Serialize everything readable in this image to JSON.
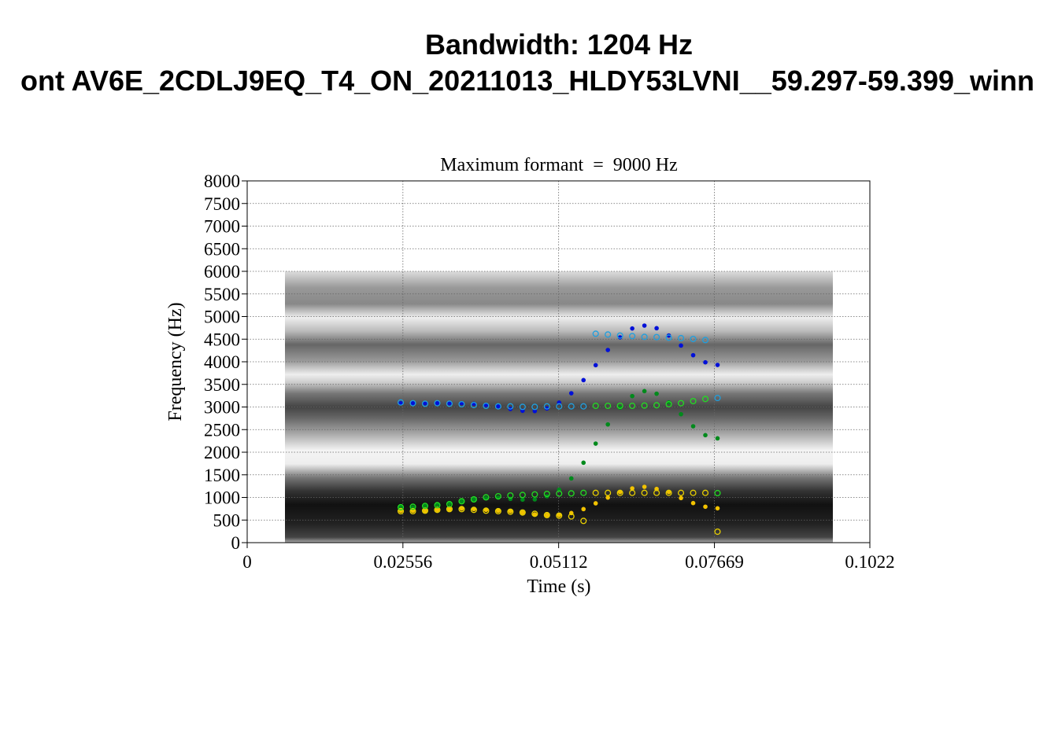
{
  "header": {
    "title_line1": "Bandwidth: 1204 Hz",
    "title_line2": "ont AV6E_2CDLJ9EQ_T4_ON_20211013_HLDY53LVNI__59.297-59.399_winn"
  },
  "chart_data": {
    "type": "scatter",
    "title": "Maximum formant  =  9000 Hz",
    "xlabel": "Time (s)",
    "ylabel": "Frequency (Hz)",
    "xlim": [
      0,
      0.1022
    ],
    "ylim": [
      0,
      8000
    ],
    "grid": true,
    "x_ticks": [
      "0",
      "0.02556",
      "0.05112",
      "0.07669",
      "0.1022"
    ],
    "x_tick_values": [
      0,
      0.02556,
      0.05112,
      0.07669,
      0.1022
    ],
    "y_ticks": [
      "0",
      "500",
      "1000",
      "1500",
      "2000",
      "2500",
      "3000",
      "3500",
      "4000",
      "4500",
      "5000",
      "5500",
      "6000",
      "6500",
      "7000",
      "7500",
      "8000"
    ],
    "background": "spectrogram (grayscale), 0.0062-0.0961 s, 0-6000 Hz",
    "x": [
      0.0252,
      0.0272,
      0.0292,
      0.0312,
      0.0332,
      0.0352,
      0.0372,
      0.0392,
      0.0412,
      0.0432,
      0.0452,
      0.0472,
      0.0492,
      0.0512,
      0.0532,
      0.0552,
      0.0572,
      0.0592,
      0.0612,
      0.0632,
      0.0652,
      0.0672,
      0.0692,
      0.0712,
      0.0732,
      0.0752,
      0.0772
    ],
    "series": [
      {
        "name": "F1 (filled)",
        "marker": "filled",
        "color": "#f2c200",
        "values": [
          707,
          707,
          707,
          725,
          742,
          754,
          742,
          725,
          707,
          696,
          667,
          626,
          609,
          609,
          655,
          742,
          870,
          997,
          1119,
          1200,
          1235,
          1188,
          1119,
          986,
          875,
          795,
          760
        ]
      },
      {
        "name": "F2 (filled)",
        "marker": "filled",
        "color": "#008a1c",
        "values": [
          783,
          783,
          812,
          841,
          870,
          916,
          957,
          986,
          997,
          968,
          951,
          957,
          1026,
          1171,
          1420,
          1768,
          2191,
          2615,
          2986,
          3241,
          3351,
          3293,
          3101,
          2841,
          2574,
          2377,
          2307
        ]
      },
      {
        "name": "F3 (filled)",
        "marker": "filled",
        "color": "#0010d8",
        "values": [
          3084,
          3084,
          3084,
          3084,
          3084,
          3084,
          3072,
          3043,
          3014,
          2957,
          2916,
          2910,
          2968,
          3096,
          3304,
          3594,
          3925,
          4261,
          4539,
          4736,
          4800,
          4742,
          4580,
          4359,
          4145,
          3988,
          3930
        ]
      },
      {
        "name": "F1 (open)",
        "marker": "open",
        "color": "#e8d000",
        "values": [
          696,
          696,
          707,
          725,
          742,
          742,
          725,
          707,
          696,
          684,
          667,
          638,
          609,
          597,
          580,
          481,
          1101,
          1101,
          1101,
          1101,
          1101,
          1101,
          1101,
          1101,
          1101,
          1101,
          243
        ]
      },
      {
        "name": "F2 (open)",
        "marker": "open",
        "color": "#22dd22",
        "values": [
          783,
          794,
          812,
          829,
          852,
          916,
          957,
          1003,
          1026,
          1043,
          1055,
          1067,
          1078,
          1084,
          1090,
          1101,
          3026,
          3026,
          3026,
          3026,
          3032,
          3038,
          3061,
          3084,
          3130,
          3177,
          1096
        ]
      },
      {
        "name": "F3 (open)",
        "marker": "open",
        "color": "#1f9fdf",
        "values": [
          3101,
          3084,
          3072,
          3084,
          3072,
          3061,
          3043,
          3026,
          3014,
          3014,
          3003,
          3003,
          3014,
          3014,
          3014,
          3014,
          4620,
          4603,
          4580,
          4568,
          4551,
          4545,
          4533,
          4522,
          4504,
          4481,
          3200
        ]
      }
    ]
  }
}
